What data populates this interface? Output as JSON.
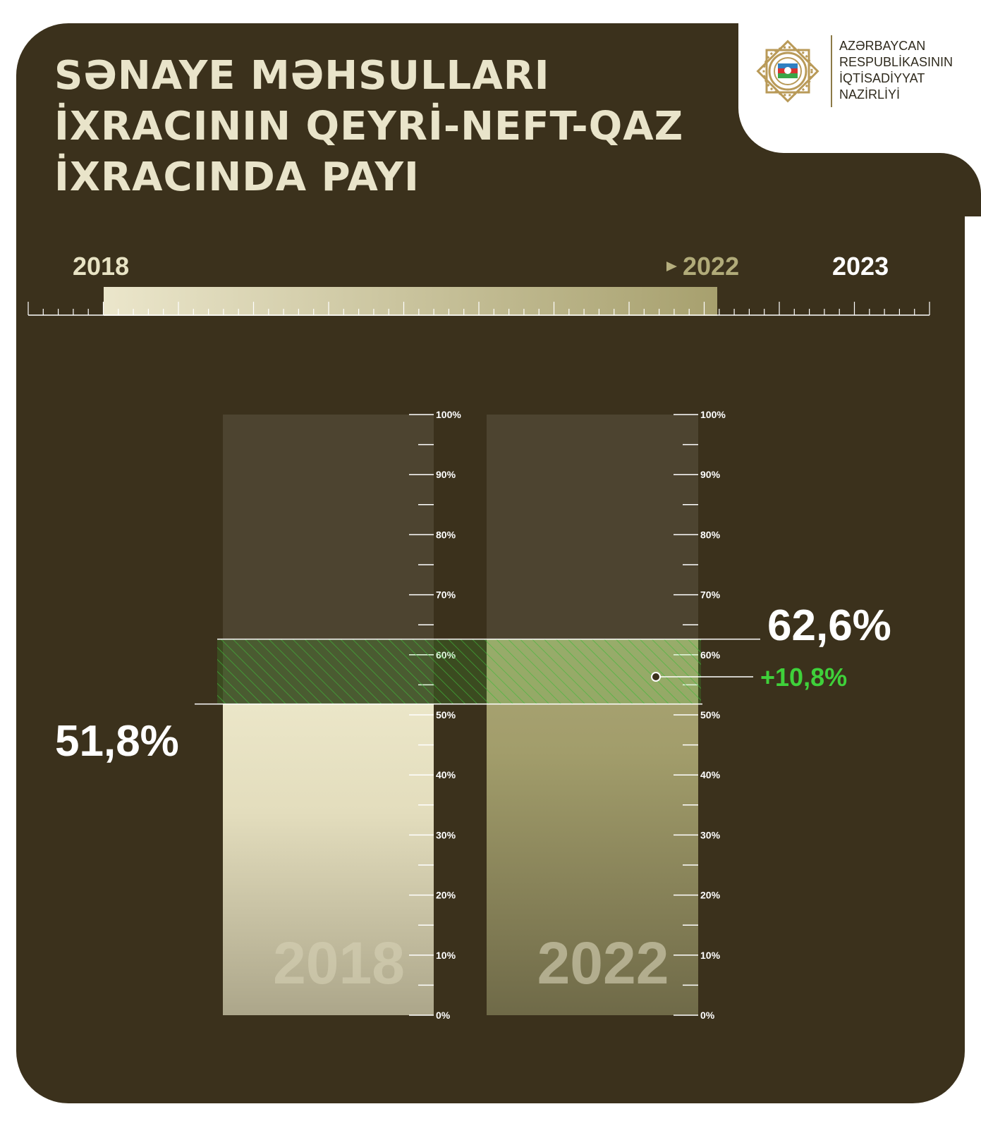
{
  "title": {
    "line1": "SƏNAYE MƏHSULLARI",
    "line2": "İXRACININ QEYRİ-NEFT-QAZ",
    "line3": "İXRACINDA PAYI"
  },
  "ministry": {
    "line1": "AZƏRBAYCAN",
    "line2": "RESPUBLİKASININ",
    "line3": "İQTİSADİYYAT",
    "line4": "NAZİRLİYİ"
  },
  "timeline": {
    "start_label": "2018",
    "end_label": "2022",
    "extra_label": "2023"
  },
  "colors": {
    "background": "#3b311c",
    "bar_2018": "#e8e3c4",
    "bar_2022": "#a8a46f",
    "highlight_green": "#3fd13a",
    "title": "#e9e4ca"
  },
  "chart_data": {
    "type": "bar",
    "categories": [
      "2018",
      "2022"
    ],
    "values": [
      51.8,
      62.6
    ],
    "value_labels": [
      "51,8%",
      "62,6%"
    ],
    "difference": 10.8,
    "difference_label": "+10,8%",
    "ylim": [
      0,
      100
    ],
    "y_ticks": [
      "0%",
      "10%",
      "20%",
      "30%",
      "40%",
      "50%",
      "60%",
      "70%",
      "80%",
      "90%",
      "100%"
    ],
    "title": "",
    "xlabel": "",
    "ylabel": ""
  }
}
